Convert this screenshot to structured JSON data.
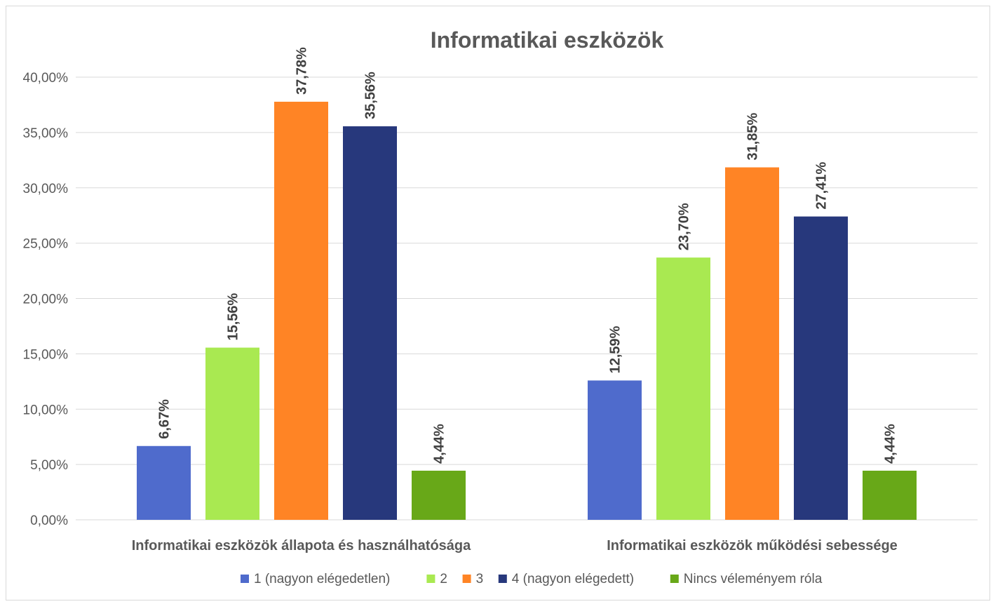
{
  "chart_data": {
    "type": "bar",
    "title": "Informatikai eszközök",
    "categories": [
      "Informatikai eszközök állapota és használhatósága",
      "Informatikai eszközök működési sebessége"
    ],
    "series": [
      {
        "name": "1 (nagyon elégedetlen)",
        "color": "#4F6BCC",
        "values": [
          6.67,
          12.59
        ],
        "labels": [
          "6,67%",
          "12,59%"
        ]
      },
      {
        "name": "2",
        "color": "#A9E951",
        "values": [
          15.56,
          23.7
        ],
        "labels": [
          "15,56%",
          "23,70%"
        ]
      },
      {
        "name": "3",
        "color": "#FF8425",
        "values": [
          37.78,
          31.85
        ],
        "labels": [
          "37,78%",
          "31,85%"
        ]
      },
      {
        "name": "4 (nagyon elégedett)",
        "color": "#27387C",
        "values": [
          35.56,
          27.41
        ],
        "labels": [
          "35,56%",
          "27,41%"
        ]
      },
      {
        "name": "Nincs véleményem róla",
        "color": "#68A818",
        "values": [
          4.44,
          4.44
        ],
        "labels": [
          "4,44%",
          "4,44%"
        ]
      }
    ],
    "ylim": [
      0,
      40
    ],
    "yticks": [
      "0,00%",
      "5,00%",
      "10,00%",
      "15,00%",
      "20,00%",
      "25,00%",
      "30,00%",
      "35,00%",
      "40,00%"
    ],
    "grid": true,
    "legend": "bottom"
  }
}
